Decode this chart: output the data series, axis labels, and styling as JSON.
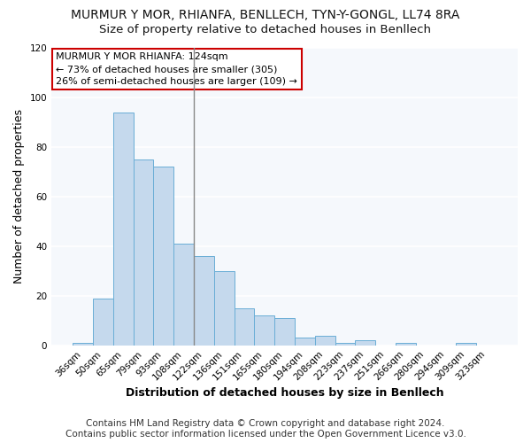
{
  "title": "MURMUR Y MOR, RHIANFA, BENLLECH, TYN-Y-GONGL, LL74 8RA",
  "subtitle": "Size of property relative to detached houses in Benllech",
  "xlabel": "Distribution of detached houses by size in Benllech",
  "ylabel": "Number of detached properties",
  "categories": [
    "36sqm",
    "50sqm",
    "65sqm",
    "79sqm",
    "93sqm",
    "108sqm",
    "122sqm",
    "136sqm",
    "151sqm",
    "165sqm",
    "180sqm",
    "194sqm",
    "208sqm",
    "223sqm",
    "237sqm",
    "251sqm",
    "266sqm",
    "280sqm",
    "294sqm",
    "309sqm",
    "323sqm"
  ],
  "values": [
    1,
    19,
    94,
    75,
    72,
    41,
    36,
    30,
    15,
    12,
    11,
    3,
    4,
    1,
    2,
    0,
    1,
    0,
    0,
    1,
    0
  ],
  "bar_color": "#c5d9ed",
  "bar_edge_color": "#6aaed6",
  "highlight_x": "122sqm",
  "highlight_line_color": "#888888",
  "ylim": [
    0,
    120
  ],
  "yticks": [
    0,
    20,
    40,
    60,
    80,
    100,
    120
  ],
  "annotation_title": "MURMUR Y MOR RHIANFA: 124sqm",
  "annotation_line1": "← 73% of detached houses are smaller (305)",
  "annotation_line2": "26% of semi-detached houses are larger (109) →",
  "annotation_box_color": "#ffffff",
  "annotation_box_edge": "#cc0000",
  "footer_line1": "Contains HM Land Registry data © Crown copyright and database right 2024.",
  "footer_line2": "Contains public sector information licensed under the Open Government Licence v3.0.",
  "background_color": "#ffffff",
  "plot_background": "#f5f8fc",
  "grid_color": "#ffffff",
  "title_fontsize": 10,
  "subtitle_fontsize": 9.5,
  "axis_label_fontsize": 9,
  "tick_fontsize": 7.5,
  "annotation_fontsize": 8,
  "footer_fontsize": 7.5
}
